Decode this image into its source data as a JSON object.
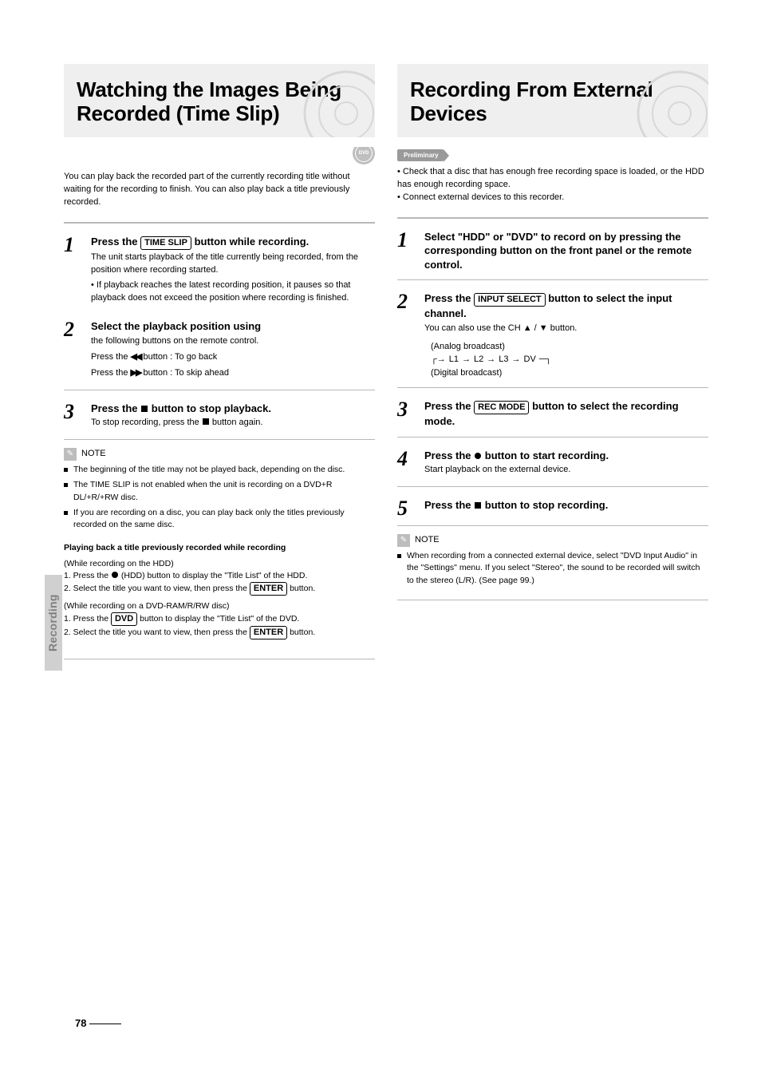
{
  "colors": {
    "heading_bg": "#efefef",
    "rule": "#b8b8b8",
    "side_tab_bg": "#d0d0d0",
    "side_tab_text": "#808080",
    "note_icon_bg": "#bdbdbd",
    "prelim_bg": "#9a9a9a",
    "text": "#000000",
    "page_bg": "#ffffff"
  },
  "page": {
    "number": "78",
    "side_tab": "Recording"
  },
  "left": {
    "heading": "Watching the Images Being Recorded (Time Slip)",
    "disc_badge": "DVD",
    "intro": "You can play back the recorded part of the currently recording title without waiting for the recording to finish. You can also play back a title previously recorded.",
    "steps": [
      {
        "num": "1",
        "title_prefix": "Press the ",
        "title_button": "TIME SLIP",
        "title_suffix": " button while recording.",
        "sub_before_bullet": "The unit starts playback of the title currently being recorded, from the position where recording started.",
        "bullet": "If playback reaches the latest recording position, it pauses so that playback does not exceed the position where recording is finished."
      },
      {
        "num": "2",
        "title": "Select the playback position using",
        "lines": [
          "the following buttons on the remote control.",
          "Press the <span class=\"sym-rew\">◀◀</span> button : To go back",
          "Press the <span class=\"sym-ff\">▶▶</span> button : To skip ahead"
        ]
      },
      {
        "num": "3",
        "title_prefix": "Press the ",
        "title_stop": true,
        "title_suffix": " button to stop playback.",
        "sub": "To stop recording, press the <span class=\"sym-stop\"></span> button again."
      }
    ],
    "notes_label": "NOTE",
    "notes": [
      "The beginning of the title may not be played back, depending on the disc.",
      "The TIME SLIP is not enabled when the unit is recording on a DVD+R DL/+R/+RW disc.",
      "If you are recording on a disc, you can play back only the titles previously recorded on the same disc."
    ],
    "tip_head": "Playing back a title previously recorded while recording",
    "tip_lines": [
      "(While recording on the HDD)",
      "1. Press the <span class=\"sym-rec\"></span> (HDD) button to display the \"Title List\" of the HDD.",
      "2. Select the title you want to view, then press the <span class=\"boxed\">ENTER</span> button.",
      "(While recording on a DVD-RAM/R/RW disc)",
      "1. Press the <span class=\"boxed\">DVD</span> button to display the \"Title List\" of the DVD.",
      "2. Select the title you want to view, then press the <span class=\"boxed\">ENTER</span> button."
    ]
  },
  "right": {
    "heading": "Recording From External Devices",
    "prelim": "Preliminary",
    "prelim_lines": [
      "• Check that a disc that has enough free recording space is loaded, or the HDD has enough recording space.",
      "• Connect external devices to this recorder."
    ],
    "steps": [
      {
        "num": "1",
        "title": "Select \"HDD\" or \"DVD\" to record on by pressing the corresponding button on the front panel or the remote control."
      },
      {
        "num": "2",
        "title_prefix": "Press the ",
        "title_button": "INPUT SELECT",
        "title_suffix": " button to select the input channel.",
        "sub": "You can also use the CH ▲ / ▼ button.",
        "chain_label_top": "(Analog broadcast)",
        "chain_label_bottom": "(Digital broadcast)",
        "chain": [
          "L1",
          "L2",
          "L3",
          "DV"
        ]
      },
      {
        "num": "3",
        "title_prefix": "Press the ",
        "title_button": "REC MODE",
        "title_suffix": " button to select the recording mode."
      },
      {
        "num": "4",
        "title_prefix": "Press the ",
        "title_rec": true,
        "title_suffix": " button to start recording.",
        "sub": "Start playback on the external device."
      },
      {
        "num": "5",
        "title_prefix": "Press the ",
        "title_stop": true,
        "title_suffix": " button to stop recording."
      }
    ],
    "notes_label": "NOTE",
    "notes": [
      "When recording from a connected external device, select \"DVD Input Audio\" in the \"Settings\" menu. If you select \"Stereo\", the sound to be recorded will switch to the stereo (L/R). (See page 99.)"
    ]
  }
}
